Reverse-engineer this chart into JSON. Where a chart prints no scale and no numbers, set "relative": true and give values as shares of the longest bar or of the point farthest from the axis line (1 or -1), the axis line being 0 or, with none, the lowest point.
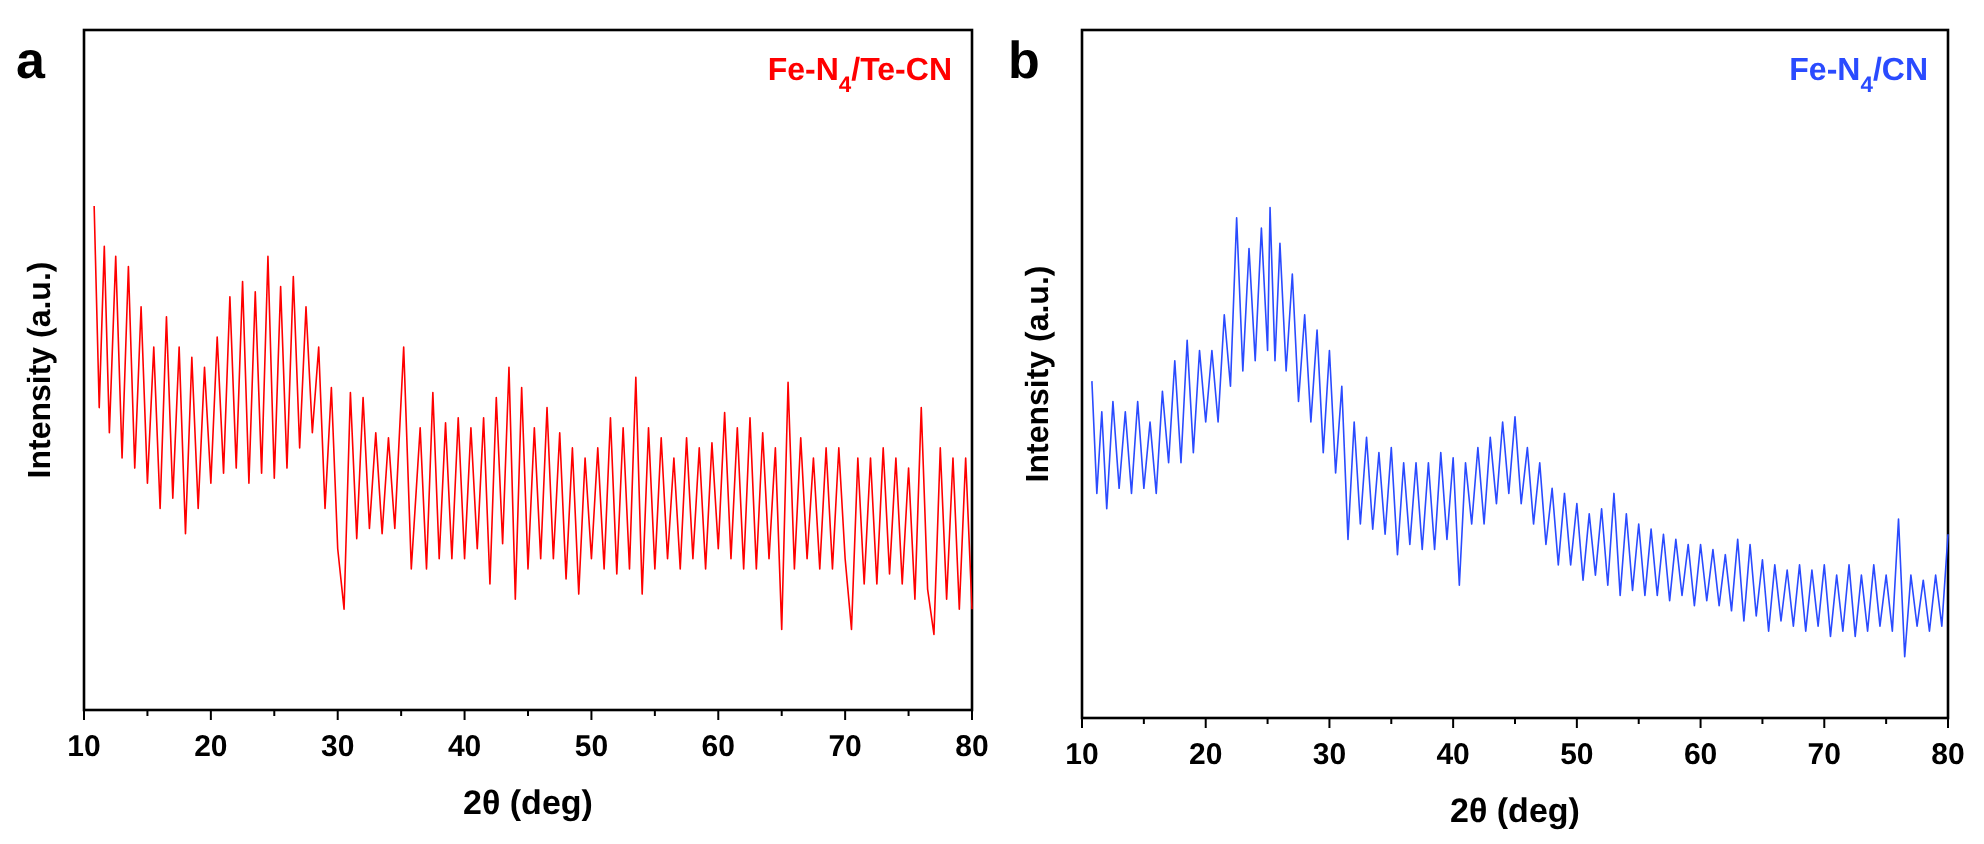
{
  "chart_data": [
    {
      "type": "line",
      "title": "a",
      "xlabel": "2θ (deg)",
      "ylabel": "Intensity (a.u.)",
      "relative": true,
      "xlim": [
        10,
        80
      ],
      "xticks": [
        10,
        {
          "value": 15,
          "label": null
        },
        20,
        {
          "value": 25,
          "label": null
        },
        30,
        {
          "value": 35,
          "label": null
        },
        40,
        {
          "value": 45,
          "label": null
        },
        50,
        {
          "value": 55,
          "label": null
        },
        60,
        {
          "value": 65,
          "label": null
        },
        70,
        {
          "value": 75,
          "label": null
        },
        80
      ],
      "series": [
        {
          "name": "Fe-N$_{4}$/Te-CN",
          "color": "#ff0000",
          "x": [
            10.8,
            11.2,
            11.6,
            12.0,
            12.5,
            13.0,
            13.5,
            14.0,
            14.5,
            15.0,
            15.5,
            16.0,
            16.5,
            17.0,
            17.5,
            18.0,
            18.5,
            19.0,
            19.5,
            20.0,
            20.5,
            21.0,
            21.5,
            22.0,
            22.5,
            23.0,
            23.5,
            24.0,
            24.5,
            25.0,
            25.5,
            26.0,
            26.5,
            27.0,
            27.5,
            28.0,
            28.5,
            29.0,
            29.5,
            30.0,
            30.5,
            31.0,
            31.5,
            32.0,
            32.5,
            33.0,
            33.5,
            34.0,
            34.5,
            35.2,
            35.8,
            36.5,
            37.0,
            37.5,
            38.0,
            38.5,
            39.0,
            39.5,
            40.0,
            40.5,
            41.0,
            41.5,
            42.0,
            42.5,
            43.0,
            43.5,
            44.0,
            44.5,
            45.0,
            45.5,
            46.0,
            46.5,
            47.0,
            47.5,
            48.0,
            48.5,
            49.0,
            49.5,
            50.0,
            50.5,
            51.0,
            51.5,
            52.0,
            52.5,
            53.0,
            53.5,
            54.0,
            54.5,
            55.0,
            55.5,
            56.0,
            56.5,
            57.0,
            57.5,
            58.0,
            58.5,
            59.0,
            59.5,
            60.0,
            60.5,
            61.0,
            61.5,
            62.0,
            62.5,
            63.0,
            63.5,
            64.0,
            64.5,
            65.0,
            65.5,
            66.0,
            66.5,
            67.0,
            67.5,
            68.0,
            68.5,
            69.0,
            69.5,
            70.0,
            70.5,
            71.0,
            71.5,
            72.0,
            72.5,
            73.0,
            73.5,
            74.0,
            74.5,
            75.0,
            75.5,
            76.0,
            76.5,
            77.0,
            77.5,
            78.0,
            78.5,
            79.0,
            79.5,
            80.0
          ],
          "values": [
            1.0,
            0.6,
            0.92,
            0.55,
            0.9,
            0.5,
            0.88,
            0.48,
            0.8,
            0.45,
            0.72,
            0.4,
            0.78,
            0.42,
            0.72,
            0.35,
            0.7,
            0.4,
            0.68,
            0.45,
            0.74,
            0.47,
            0.82,
            0.48,
            0.85,
            0.45,
            0.83,
            0.47,
            0.9,
            0.46,
            0.84,
            0.48,
            0.86,
            0.52,
            0.8,
            0.55,
            0.72,
            0.4,
            0.64,
            0.32,
            0.2,
            0.63,
            0.34,
            0.62,
            0.36,
            0.55,
            0.35,
            0.54,
            0.36,
            0.72,
            0.28,
            0.56,
            0.28,
            0.63,
            0.3,
            0.57,
            0.3,
            0.58,
            0.3,
            0.56,
            0.32,
            0.58,
            0.25,
            0.62,
            0.33,
            0.68,
            0.22,
            0.64,
            0.28,
            0.56,
            0.3,
            0.6,
            0.3,
            0.55,
            0.26,
            0.52,
            0.23,
            0.5,
            0.3,
            0.52,
            0.28,
            0.58,
            0.27,
            0.56,
            0.28,
            0.66,
            0.23,
            0.56,
            0.28,
            0.54,
            0.3,
            0.5,
            0.28,
            0.54,
            0.3,
            0.52,
            0.28,
            0.53,
            0.32,
            0.59,
            0.3,
            0.56,
            0.28,
            0.58,
            0.28,
            0.55,
            0.3,
            0.52,
            0.16,
            0.65,
            0.28,
            0.54,
            0.3,
            0.5,
            0.28,
            0.52,
            0.28,
            0.52,
            0.3,
            0.16,
            0.5,
            0.25,
            0.5,
            0.25,
            0.52,
            0.27,
            0.5,
            0.25,
            0.48,
            0.22,
            0.6,
            0.24,
            0.15,
            0.52,
            0.22,
            0.5,
            0.2,
            0.5,
            0.2
          ]
        }
      ]
    },
    {
      "type": "line",
      "title": "b",
      "xlabel": "2θ (deg)",
      "ylabel": "Intensity (a.u.)",
      "relative": true,
      "xlim": [
        10,
        80
      ],
      "xticks": [
        10,
        {
          "value": 15,
          "label": null
        },
        20,
        {
          "value": 25,
          "label": null
        },
        30,
        {
          "value": 35,
          "label": null
        },
        40,
        {
          "value": 45,
          "label": null
        },
        50,
        {
          "value": 55,
          "label": null
        },
        60,
        {
          "value": 65,
          "label": null
        },
        70,
        {
          "value": 75,
          "label": null
        },
        80
      ],
      "series": [
        {
          "name": "Fe-N$_{4}$/CN",
          "color": "#2a4bff",
          "x": [
            10.8,
            11.2,
            11.6,
            12.0,
            12.5,
            13.0,
            13.5,
            14.0,
            14.5,
            15.0,
            15.5,
            16.0,
            16.5,
            17.0,
            17.5,
            18.0,
            18.5,
            19.0,
            19.5,
            20.0,
            20.5,
            21.0,
            21.5,
            22.0,
            22.5,
            23.0,
            23.5,
            24.0,
            24.5,
            25.0,
            25.2,
            25.6,
            26.0,
            26.5,
            27.0,
            27.5,
            28.0,
            28.5,
            29.0,
            29.5,
            30.0,
            30.5,
            31.0,
            31.5,
            32.0,
            32.5,
            33.0,
            33.5,
            34.0,
            34.5,
            35.0,
            35.5,
            36.0,
            36.5,
            37.0,
            37.5,
            38.0,
            38.5,
            39.0,
            39.5,
            40.0,
            40.5,
            41.0,
            41.5,
            42.0,
            42.5,
            43.0,
            43.5,
            44.0,
            44.5,
            45.0,
            45.5,
            46.0,
            46.5,
            47.0,
            47.5,
            48.0,
            48.5,
            49.0,
            49.5,
            50.0,
            50.5,
            51.0,
            51.5,
            52.0,
            52.5,
            53.0,
            53.5,
            54.0,
            54.5,
            55.0,
            55.5,
            56.0,
            56.5,
            57.0,
            57.5,
            58.0,
            58.5,
            59.0,
            59.5,
            60.0,
            60.5,
            61.0,
            61.5,
            62.0,
            62.5,
            63.0,
            63.5,
            64.0,
            64.5,
            65.0,
            65.5,
            66.0,
            66.5,
            67.0,
            67.5,
            68.0,
            68.5,
            69.0,
            69.5,
            70.0,
            70.5,
            71.0,
            71.5,
            72.0,
            72.5,
            73.0,
            73.5,
            74.0,
            74.5,
            75.0,
            75.5,
            76.0,
            76.5,
            77.0,
            77.5,
            78.0,
            78.5,
            79.0,
            79.5,
            80.0
          ],
          "values": [
            0.66,
            0.44,
            0.6,
            0.41,
            0.62,
            0.45,
            0.6,
            0.44,
            0.62,
            0.45,
            0.58,
            0.44,
            0.64,
            0.5,
            0.7,
            0.5,
            0.74,
            0.52,
            0.72,
            0.58,
            0.72,
            0.58,
            0.79,
            0.65,
            0.98,
            0.68,
            0.92,
            0.7,
            0.96,
            0.72,
            1.0,
            0.7,
            0.93,
            0.68,
            0.87,
            0.62,
            0.79,
            0.58,
            0.76,
            0.52,
            0.72,
            0.48,
            0.65,
            0.35,
            0.58,
            0.38,
            0.55,
            0.37,
            0.52,
            0.36,
            0.53,
            0.32,
            0.5,
            0.34,
            0.5,
            0.33,
            0.5,
            0.33,
            0.52,
            0.35,
            0.51,
            0.26,
            0.5,
            0.38,
            0.53,
            0.38,
            0.55,
            0.42,
            0.58,
            0.44,
            0.59,
            0.42,
            0.53,
            0.38,
            0.5,
            0.34,
            0.45,
            0.3,
            0.44,
            0.3,
            0.42,
            0.27,
            0.4,
            0.28,
            0.41,
            0.26,
            0.44,
            0.24,
            0.4,
            0.25,
            0.38,
            0.24,
            0.37,
            0.24,
            0.36,
            0.23,
            0.35,
            0.24,
            0.34,
            0.22,
            0.34,
            0.23,
            0.33,
            0.22,
            0.32,
            0.21,
            0.35,
            0.19,
            0.34,
            0.2,
            0.31,
            0.17,
            0.3,
            0.19,
            0.29,
            0.18,
            0.3,
            0.17,
            0.29,
            0.18,
            0.3,
            0.16,
            0.28,
            0.17,
            0.3,
            0.16,
            0.28,
            0.17,
            0.3,
            0.18,
            0.28,
            0.17,
            0.39,
            0.12,
            0.28,
            0.18,
            0.27,
            0.17,
            0.28,
            0.18,
            0.36
          ]
        }
      ]
    }
  ]
}
